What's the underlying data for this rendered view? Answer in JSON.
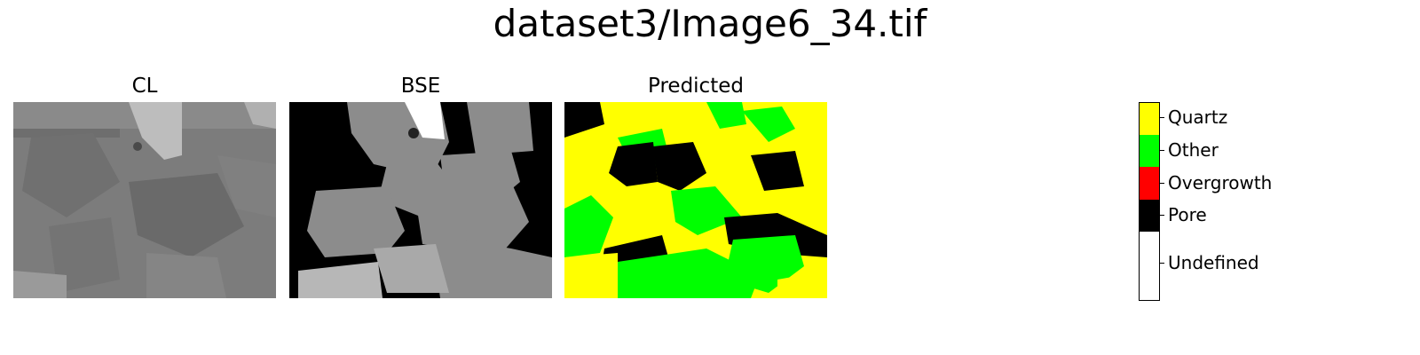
{
  "figure": {
    "title": "dataset3/Image6_34.tif"
  },
  "panels": [
    {
      "title": "CL"
    },
    {
      "title": "BSE"
    },
    {
      "title": "Predicted"
    }
  ],
  "colorbar": {
    "classes": [
      {
        "label": "Quartz",
        "color": "#ffff00"
      },
      {
        "label": "Other",
        "color": "#00ff00"
      },
      {
        "label": "Overgrowth",
        "color": "#ff0000"
      },
      {
        "label": "Pore",
        "color": "#000000"
      },
      {
        "label": "Undefined",
        "color": "#ffffff"
      }
    ]
  }
}
